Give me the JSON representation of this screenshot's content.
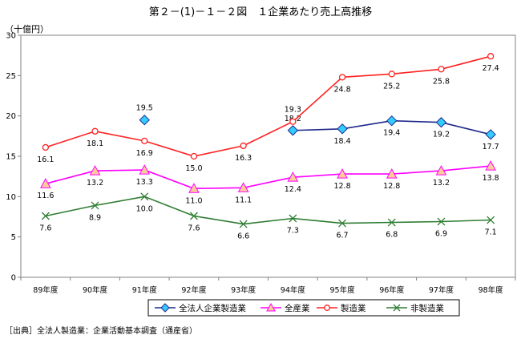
{
  "chart_data": {
    "type": "line",
    "title": "第２－(1)－１－２図　１企業あたり売上高推移",
    "unit_label": "（十億円）",
    "source_note": "［出典］全法人製造業：企業活動基本調査（通産省）",
    "categories": [
      "89年度",
      "90年度",
      "91年度",
      "92年度",
      "93年度",
      "94年度",
      "95年度",
      "96年度",
      "97年度",
      "98年度"
    ],
    "ylim": [
      0,
      30
    ],
    "yticks": [
      0,
      5,
      10,
      15,
      20,
      25,
      30
    ],
    "grid": false,
    "legend_position": "bottom",
    "series": [
      {
        "name": "全法人企業製造業",
        "color": "#1f2a8c",
        "marker_fill": "#33ccff",
        "marker": "diamond",
        "values": [
          null,
          null,
          19.5,
          null,
          null,
          18.2,
          18.4,
          19.4,
          19.2,
          17.7
        ],
        "labels": [
          "",
          "",
          "19.5",
          "",
          "",
          "18.2",
          "18.4",
          "19.4",
          "19.2",
          "17.7"
        ]
      },
      {
        "name": "全産業",
        "color": "#ff00ff",
        "marker_fill": "#ffcc99",
        "marker": "triangle",
        "values": [
          11.6,
          13.2,
          13.3,
          11.0,
          11.1,
          12.4,
          12.8,
          12.8,
          13.2,
          13.8
        ],
        "labels": [
          "11.6",
          "13.2",
          "13.3",
          "11.0",
          "11.1",
          "12.4",
          "12.8",
          "12.8",
          "13.2",
          "13.8"
        ]
      },
      {
        "name": "製造業",
        "color": "#ff2020",
        "marker_fill": "#ffffff",
        "marker": "circle",
        "values": [
          16.1,
          18.1,
          16.9,
          15.0,
          16.3,
          19.3,
          24.8,
          25.2,
          25.8,
          27.4
        ],
        "labels": [
          "16.1",
          "18.1",
          "16.9",
          "15.0",
          "16.3",
          "19.3",
          "24.8",
          "25.2",
          "25.8",
          "27.4"
        ]
      },
      {
        "name": "非製造業",
        "color": "#2e7d32",
        "marker_fill": "none",
        "marker": "x",
        "values": [
          7.6,
          8.9,
          10.0,
          7.6,
          6.6,
          7.3,
          6.7,
          6.8,
          6.9,
          7.1
        ],
        "labels": [
          "7.6",
          "8.9",
          "10.0",
          "7.6",
          "6.6",
          "7.3",
          "6.7",
          "6.8",
          "6.9",
          "7.1"
        ]
      }
    ]
  }
}
